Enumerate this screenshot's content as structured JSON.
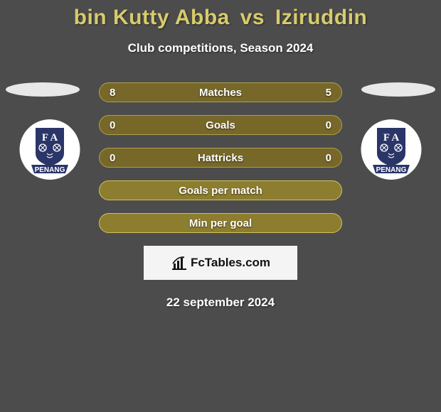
{
  "title_color": "#d8cb6c",
  "player_left": "bin Kutty Abba",
  "vs": "vs",
  "player_right": "Iziruddin",
  "subtitle": "Club competitions, Season 2024",
  "rows": [
    {
      "left": "8",
      "label": "Matches",
      "right": "5",
      "bg": "#776829",
      "border": "#aca050"
    },
    {
      "left": "0",
      "label": "Goals",
      "right": "0",
      "bg": "#776829",
      "border": "#aca050"
    },
    {
      "left": "0",
      "label": "Hattricks",
      "right": "0",
      "bg": "#776829",
      "border": "#aca050"
    },
    {
      "left": "",
      "label": "Goals per match",
      "right": "",
      "bg": "#8c7d2f",
      "border": "#d2c35a"
    },
    {
      "left": "",
      "label": "Min per goal",
      "right": "",
      "bg": "#8c7d2f",
      "border": "#d2c35a"
    }
  ],
  "brand": "FcTables.com",
  "date": "22 september 2024",
  "badge": {
    "circle_fill": "#ffffff",
    "shield_fill": "#2a3568",
    "banner_fill": "#2a3568",
    "text_top": "F A",
    "text_bottom": "PENANG"
  }
}
